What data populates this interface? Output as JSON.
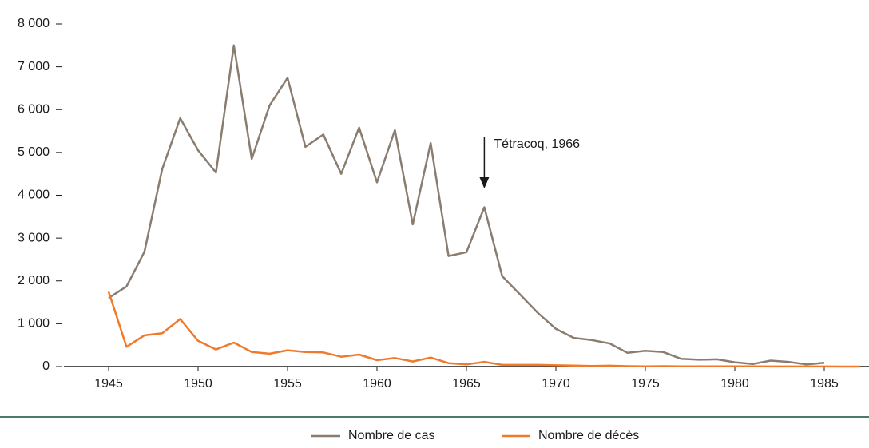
{
  "chart_data": {
    "type": "line",
    "x": [
      1945,
      1946,
      1947,
      1948,
      1949,
      1950,
      1951,
      1952,
      1953,
      1954,
      1955,
      1956,
      1957,
      1958,
      1959,
      1960,
      1961,
      1962,
      1963,
      1964,
      1965,
      1966,
      1967,
      1968,
      1969,
      1970,
      1971,
      1972,
      1973,
      1974,
      1975,
      1976,
      1977,
      1978,
      1979,
      1980,
      1981,
      1982,
      1983,
      1984,
      1985,
      1986,
      1987
    ],
    "series": [
      {
        "name": "Nombre de cas",
        "color": "#8a7d70",
        "values": [
          1600,
          1870,
          2680,
          4620,
          5800,
          5050,
          4530,
          7500,
          4850,
          6100,
          6740,
          5130,
          5420,
          4500,
          5580,
          4300,
          5520,
          3320,
          5220,
          2580,
          2670,
          3720,
          2110,
          1680,
          1250,
          880,
          670,
          620,
          540,
          320,
          370,
          340,
          180,
          160,
          170,
          100,
          60,
          140,
          110,
          50,
          90,
          null,
          null
        ]
      },
      {
        "name": "Nombre de décès",
        "color": "#f07a2a",
        "values": [
          1750,
          460,
          730,
          780,
          1110,
          600,
          400,
          560,
          340,
          300,
          380,
          340,
          330,
          230,
          280,
          150,
          200,
          120,
          210,
          80,
          50,
          110,
          40,
          40,
          40,
          30,
          25,
          15,
          20,
          10,
          5,
          10,
          5,
          5,
          5,
          3,
          3,
          2,
          2,
          1,
          1,
          0,
          0
        ]
      }
    ],
    "xlim": [
      1942.5,
      1987.5
    ],
    "xticks": [
      1945,
      1950,
      1955,
      1960,
      1965,
      1970,
      1975,
      1980,
      1985
    ],
    "ylim": [
      0,
      8000
    ],
    "yticks": [
      0,
      {
        "value": 1000,
        "label": "1 000"
      },
      {
        "value": 2000,
        "label": "2 000"
      },
      {
        "value": 3000,
        "label": "3 000"
      },
      {
        "value": 4000,
        "label": "4 000"
      },
      {
        "value": 5000,
        "label": "5 000"
      },
      {
        "value": 6000,
        "label": "6 000"
      },
      {
        "value": 7000,
        "label": "7 000"
      },
      {
        "value": 8000,
        "label": "8 000"
      }
    ],
    "annotation": {
      "text": "Tétracoq, 1966",
      "x": 1966
    }
  }
}
